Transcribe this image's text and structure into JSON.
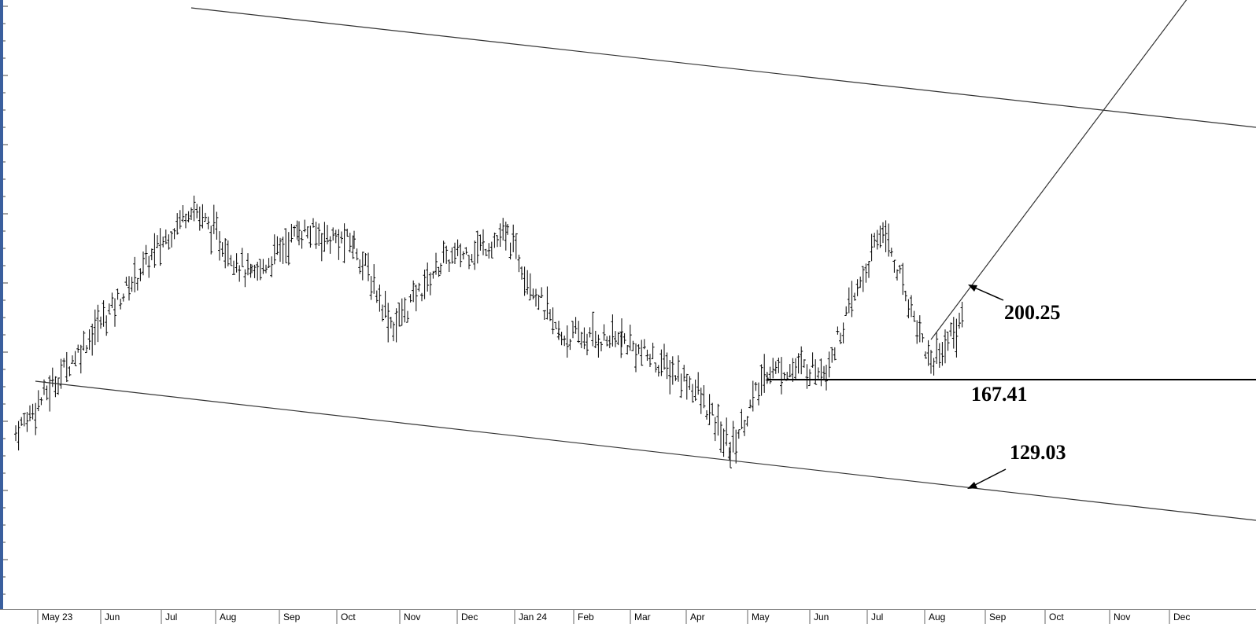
{
  "chart_data": {
    "type": "ohlc",
    "title": "",
    "xlabel": "",
    "ylabel": "",
    "grid": false,
    "x_tick_labels": [
      "May 23",
      "Jun",
      "Jul",
      "Aug",
      "Sep",
      "Oct",
      "Nov",
      "Dec",
      "Jan 24",
      "Feb",
      "Mar",
      "Apr",
      "May",
      "Jun",
      "Jul",
      "Aug",
      "Sep",
      "Oct",
      "Nov",
      "Dec"
    ],
    "price_anchors": [
      {
        "date": "May 23",
        "close": 140
      },
      {
        "date": "Jul 23",
        "close": 258
      },
      {
        "date": "Aug 23",
        "close": 220
      },
      {
        "date": "Sep 23",
        "close": 245
      },
      {
        "date": "Oct 23",
        "close": 238
      },
      {
        "date": "Nov 23",
        "close": 195
      },
      {
        "date": "Dec 23",
        "close": 228
      },
      {
        "date": "Jan 24",
        "close": 242
      },
      {
        "date": "Feb 24",
        "close": 190
      },
      {
        "date": "Mar 24",
        "close": 188
      },
      {
        "date": "Apr 24",
        "close": 165
      },
      {
        "date": "Apr 24 low",
        "close": 131
      },
      {
        "date": "May 24",
        "close": 172
      },
      {
        "date": "Jun 24",
        "close": 174
      },
      {
        "date": "Jul 24",
        "close": 246
      },
      {
        "date": "Aug 24",
        "close": 176
      },
      {
        "date": "Aug 24 last",
        "close": 200
      }
    ],
    "annotations": [
      {
        "label": "200.25",
        "kind": "rising trendline"
      },
      {
        "label": "167.41",
        "kind": "horizontal support"
      },
      {
        "label": "129.03",
        "kind": "lower channel line"
      }
    ]
  }
}
